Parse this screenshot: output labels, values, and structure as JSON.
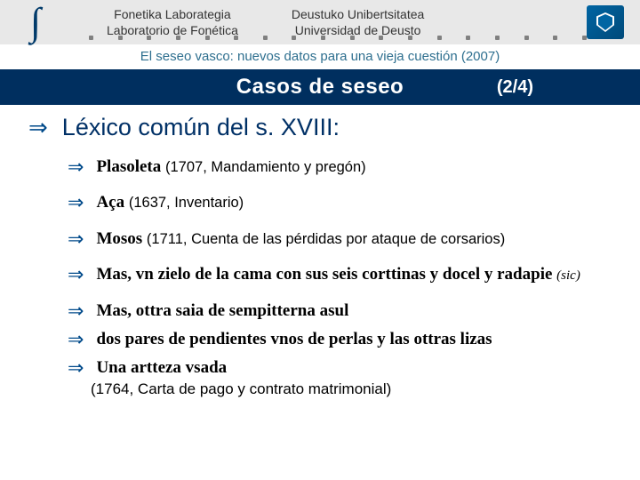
{
  "header": {
    "lab_eu": "Fonetika Laborategia",
    "lab_es": "Laboratorio de Fonética",
    "uni_eu": "Deustuko Unibertsitatea",
    "uni_es": "Universidad de Deusto"
  },
  "subtitle": {
    "text": "El seseo vasco: nuevos datos para una vieja cuestión",
    "year": "(2007)"
  },
  "title": {
    "main": "Casos de seseo",
    "page": "(2/4)"
  },
  "heading": "Léxico común del s. XVIII:",
  "items": [
    {
      "word": "Plasoleta",
      "paren": "(1707, Mandamiento y pregón)"
    },
    {
      "word": "Aça",
      "paren": "(1637, Inventario)"
    },
    {
      "word": "Mosos",
      "paren": "(1711, Cuenta de las pérdidas por ataque de corsarios)"
    },
    {
      "word_long": "Mas, vn zielo de la cama con sus seis corttinas y docel y radapie",
      "sic": "(sic)"
    },
    {
      "word_long": "Mas, ottra saia de sempitterna asul"
    },
    {
      "word_long": "dos pares de pendientes vnos de perlas y las ottras lizas"
    },
    {
      "word_long": "Una artteza vsada"
    }
  ],
  "trailing": "(1764, Carta de pago y contrato matrimonial)",
  "colors": {
    "title_band": "#002f5f",
    "header_band": "#e8e8e8",
    "accent": "#004a8a",
    "heading_text": "#003066",
    "subtitle_text": "#2e6f8f"
  }
}
